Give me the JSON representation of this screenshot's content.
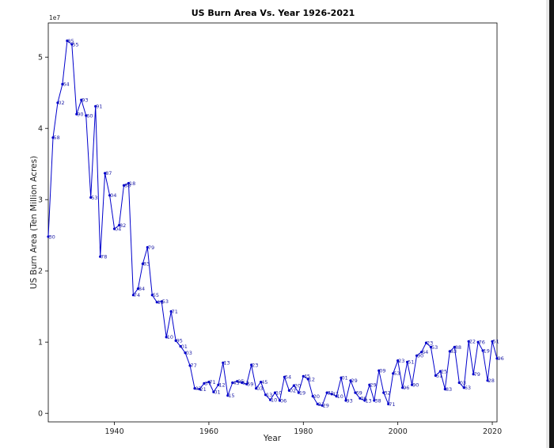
{
  "chart_data": {
    "type": "line",
    "title": "US Burn Area Vs. Year 1926-2021",
    "xlabel": "Year",
    "ylabel": "US Burn Area (Ten Million Acres)",
    "offset_text": "1e7",
    "xlim": [
      1926,
      2021
    ],
    "ylim": [
      -1200000,
      54800000
    ],
    "xticks": [
      1940,
      1960,
      1980,
      2000,
      2020
    ],
    "xtick_labels": [
      "1940",
      "1960",
      "1980",
      "2000",
      "2020"
    ],
    "yticks": [
      0,
      10000000,
      20000000,
      30000000,
      40000000,
      50000000
    ],
    "ytick_labels": [
      "0",
      "1",
      "2",
      "3",
      "4",
      "5"
    ],
    "grid": false,
    "series": [
      {
        "color": "#0000cc",
        "marker": "point",
        "x": [
          1926,
          1927,
          1928,
          1929,
          1930,
          1931,
          1932,
          1933,
          1934,
          1935,
          1936,
          1937,
          1938,
          1939,
          1940,
          1941,
          1942,
          1943,
          1944,
          1945,
          1946,
          1947,
          1948,
          1949,
          1950,
          1951,
          1952,
          1953,
          1954,
          1955,
          1956,
          1957,
          1958,
          1959,
          1960,
          1961,
          1962,
          1963,
          1964,
          1965,
          1966,
          1967,
          1968,
          1969,
          1970,
          1971,
          1972,
          1973,
          1974,
          1975,
          1976,
          1977,
          1978,
          1979,
          1980,
          1981,
          1982,
          1983,
          1984,
          1985,
          1986,
          1987,
          1988,
          1989,
          1990,
          1991,
          1992,
          1993,
          1994,
          1995,
          1996,
          1997,
          1998,
          1999,
          2000,
          2001,
          2002,
          2003,
          2004,
          2005,
          2006,
          2007,
          2008,
          2009,
          2010,
          2011,
          2012,
          2013,
          2014,
          2015,
          2016,
          2017,
          2018,
          2019,
          2020,
          2021
        ],
        "y": [
          24800000,
          38700000,
          43600000,
          46200000,
          52300000,
          51800000,
          42000000,
          44000000,
          41800000,
          30300000,
          43100000,
          22000000,
          33700000,
          30600000,
          25900000,
          26400000,
          32000000,
          32300000,
          16600000,
          17500000,
          21000000,
          23300000,
          16600000,
          15600000,
          15700000,
          10700000,
          14300000,
          10200000,
          9400000,
          8500000,
          6700000,
          3500000,
          3400000,
          4200000,
          4400000,
          3000000,
          4000000,
          7100000,
          2500000,
          4300000,
          4500000,
          4300000,
          4100000,
          6800000,
          3500000,
          4400000,
          2600000,
          1900000,
          2900000,
          1800000,
          5100000,
          3200000,
          3900000,
          2900000,
          5200000,
          4800000,
          2400000,
          1300000,
          1100000,
          2900000,
          2700000,
          2400000,
          5000000,
          1800000,
          4600000,
          2900000,
          2100000,
          1800000,
          4000000,
          1800000,
          6000000,
          2900000,
          1300000,
          5600000,
          7400000,
          3600000,
          7200000,
          4000000,
          8100000,
          8600000,
          9900000,
          9300000,
          5300000,
          5900000,
          3400000,
          8700000,
          9300000,
          4300000,
          3600000,
          10100000,
          5500000,
          10000000,
          8800000,
          4600000,
          10100000,
          7700000
        ],
        "labels": [
          "30",
          "58",
          "02",
          "64",
          "85",
          "55",
          "90",
          "93",
          "60",
          "53",
          "91",
          "78",
          "87",
          "04",
          "04",
          "82",
          "88",
          "18",
          "74",
          "84",
          "83",
          "79",
          "55",
          "15",
          "53",
          "10",
          "71",
          "95",
          "01",
          "03",
          "77",
          "03",
          "21",
          "37",
          "71",
          "01",
          "12",
          "13",
          "15",
          "43",
          "95",
          "53",
          "59",
          "23",
          "03",
          "45",
          "13",
          "10",
          "10",
          "06",
          "54",
          "02",
          "20",
          "19",
          "45",
          "12",
          "20",
          "21",
          "29",
          "31",
          "47",
          "10",
          "01",
          "93",
          "29",
          "69",
          "06",
          "13",
          "29",
          "38",
          "09",
          "32",
          "71",
          "53",
          "23",
          "96",
          "51",
          "90",
          "90",
          "64",
          "23",
          "53",
          "51",
          "25",
          "83",
          "83",
          "88",
          "03",
          "63",
          "22",
          "79",
          "76",
          "19",
          "28",
          "51",
          "96"
        ]
      }
    ]
  }
}
